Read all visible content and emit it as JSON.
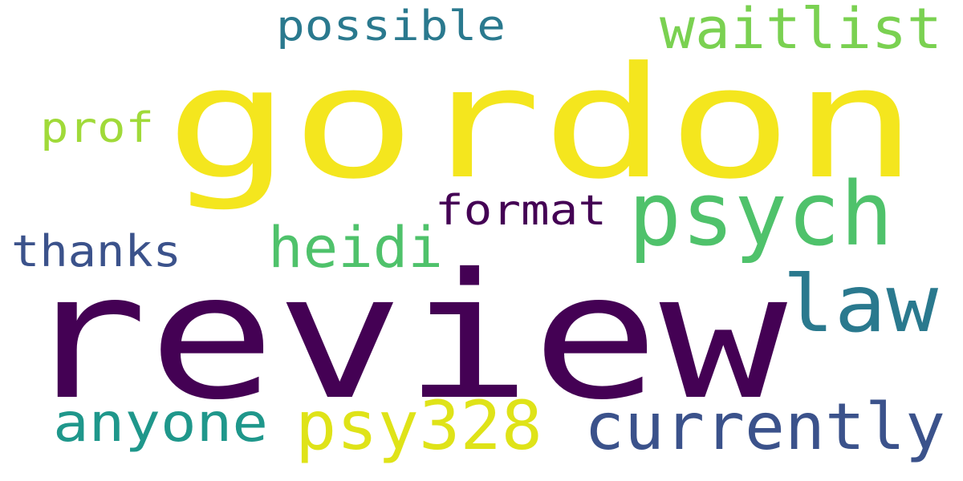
{
  "words": [
    {
      "text": "gordon",
      "color": "#f4e61e"
    },
    {
      "text": "review",
      "color": "#440154"
    },
    {
      "text": "psych",
      "color": "#4fc26b"
    },
    {
      "text": "law",
      "color": "#2a798e"
    },
    {
      "text": "waitlist",
      "color": "#7ad151"
    },
    {
      "text": "currently",
      "color": "#3b528b"
    },
    {
      "text": "psy328",
      "color": "#dfe318"
    },
    {
      "text": "heidi",
      "color": "#4fc26b"
    },
    {
      "text": "anyone",
      "color": "#1f978b"
    },
    {
      "text": "format",
      "color": "#440154"
    },
    {
      "text": "thanks",
      "color": "#3b528b"
    },
    {
      "text": "possible",
      "color": "#2a798e"
    },
    {
      "text": "prof",
      "color": "#a0da39"
    }
  ]
}
